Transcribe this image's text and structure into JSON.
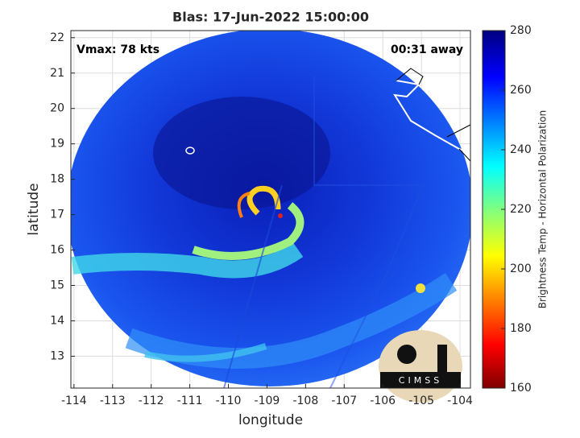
{
  "chart_data": {
    "type": "map",
    "title": "Blas: 17-Jun-2022 15:00:00",
    "annotations": [
      "Vmax: 78 kts",
      "00:31 away"
    ],
    "xlabel": "longitude",
    "ylabel": "latitude",
    "xlim": [
      -114.08,
      -103.73
    ],
    "ylim": [
      12.1,
      22.2
    ],
    "xticks": [
      -114,
      -113,
      -112,
      -111,
      -110,
      -109,
      -108,
      -107,
      -106,
      -105,
      -104
    ],
    "yticks": [
      13,
      14,
      15,
      16,
      17,
      18,
      19,
      20,
      21,
      22
    ],
    "grid": true,
    "colorbar": {
      "label": "Brightness Temp - Horizontal Polarization",
      "lim": [
        160,
        280
      ],
      "ticks": [
        160,
        180,
        200,
        220,
        240,
        260,
        280
      ]
    },
    "logo": "CIMSS"
  }
}
